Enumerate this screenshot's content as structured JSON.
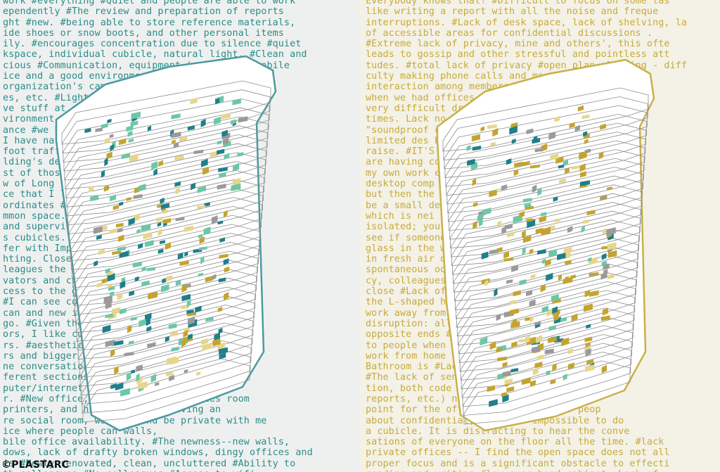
{
  "left_panel": {
    "lines": [
      "work #everything #Quiet and people are able to work",
      "ependently #The review and preparation of reports",
      "ght #new. #being able to store reference materials,",
      "ide shoes or snow boots, and other personal items",
      "ily. #encourages concentration due to silence #quiet",
      "kspace, individual cubicle, natural light. #Clean and",
      "cious #Communication, equipment is close to mobile",
      "ice and a good environment for work. #Being on",
      "organization's campus, and close to my drives,",
      "es, etc. #Light and because I can",
      "ve stuff at desk #Light isolation",
      "vironment #Flexibility work/life",
      "ance #we have great views #It is bright",
      "I have natural light. direct path",
      "foot traffic through environment #The",
      "lding's design is bright and airy.",
      "st of those in this building #My",
      "w of Long Island, considerable desk",
      "ce that I like the location with my",
      "ordinates #natural light and airy",
      "mmon space. #The environment is support-",
      "and supervisors. #Clean space #spa-",
      "s cubicles. #Cleanliness",
      "fer with Improved",
      "hting. Close to my",
      "leagues the #Natural light",
      "vators and conference rooms.. #is",
      "cess to the glass, #It is",
      "#I can see colleagues on",
      "can and new in individual",
      "go. #Given the 27th and 15th",
      "ors, I like collaboration",
      "rs. #aesthetic space for private",
      "rs and bigger colleagues from",
      "ne conversations desk, telephone and",
      "ferent sections with walls and a",
      "puter/internet work space is close to",
      "r. #New office, photocopier and ladies room",
      "printers, and humane space. #having an",
      "re social room, walk in and be private with me",
      "ice where people can walls,",
      "bile office availability. #The newness--new walls,",
      "dows, lack of drafty broken windows, dingy offices and",
      "is #Newly renovated, clean, uncluttered #Ability to",
      "th colleagues #No colleagues #Access to wifi,"
    ]
  },
  "right_panel": {
    "lines": [
      "Everybody knows that! #Difficult to focus on some tas",
      "like writing a report with all the noise and freque",
      "interruptions. #Lack of desk space, lack of shelving, la",
      "of accessible areas for confidential discussions .",
      "#Extreme lack of privacy, mine and others', this ofte",
      "leads to gossip and other stressful and pointless att",
      "tudes. #total lack of privacy #open plan planning - diff",
      "culty making phone calls and meetings. Le",
      "interaction among members as opposed",
      "when we had offices plans make",
      "very difficult drafting",
      "times. Lack no option",
      "\"soundproof concept; th",
      "limited des blinds don",
      "raise. #IT'S other peo",
      "are having concentrate",
      "my own work ergonomic f",
      "desktop comp in the corne",
      "but then the shouldn't the",
      "be a small desk? #sp",
      "which is nei cubicles are",
      "isolated; you each cubicle",
      "see if someone for the frost",
      "glass in the windows to l",
      "in fresh air dedicated",
      "spontaneous ood. #No priv",
      "cy, colleagues ce they're",
      "close #Lack of very narrow a",
      "the L-shaped ht. #Unable",
      "work away from is designed f",
      "disruption: ally rather th",
      "opposite ends #I have my ba",
      "to people when being able",
      "work from home on the phon",
      "Bathroom is #Lack of priva",
      "#The lack of sensitive inform",
      "tion, both code (cables, dra",
      "reports, etc.) nature (I am the HR foc",
      "point for the often need to speak to peop",
      "about confidential, which is impossible to do",
      "a cubicle. It is distracting to hear the conve",
      "sations of everyone on the floor all the time. #lack",
      "private offices -- I find the open space does not all",
      "proper focus and is a significant obstacle to effecti",
      "reading and writing #low over-head cabinet, Lack of"
    ]
  },
  "credit": "©PLASTARC",
  "colors": {
    "teal": "#1f7f8a",
    "teal_light": "#6cc7a8",
    "gold": "#c4a42e",
    "gold_light": "#e6d68a",
    "gray": "#9a9a9a",
    "outline_left": "#4a9aa0",
    "outline_right": "#c9b04a"
  },
  "diagram": {
    "left": {
      "floors": 32
    },
    "right": {
      "floors": 32
    }
  }
}
